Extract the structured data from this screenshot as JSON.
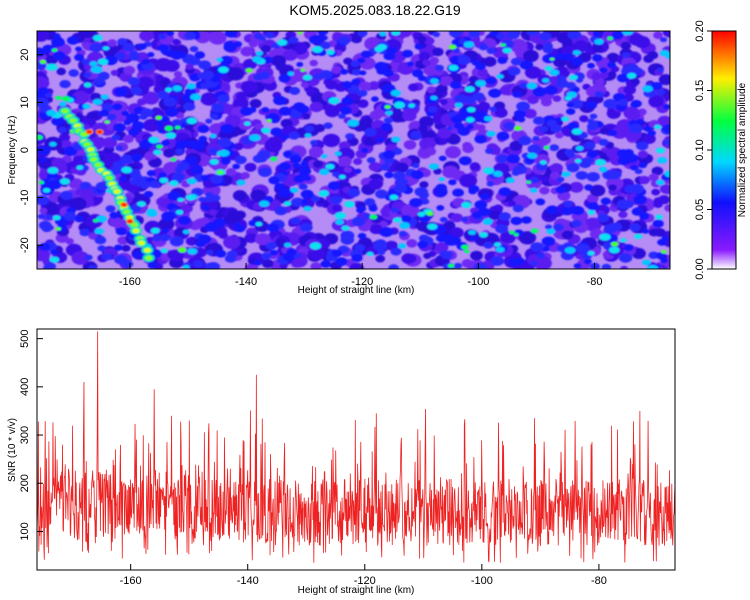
{
  "title": "KOM5.2025.083.18.22.G19",
  "chart_data": [
    {
      "type": "heatmap",
      "title": "KOM5.2025.083.18.22.G19",
      "xlabel": "Height of straight line (km)",
      "ylabel": "Frequency (Hz)",
      "xlim": [
        -176,
        -67
      ],
      "ylim": [
        -25,
        25
      ],
      "xticks": [
        "-160",
        "-140",
        "-120",
        "-100",
        "-80"
      ],
      "yticks": [
        "20",
        "10",
        "0",
        "-10",
        "-20"
      ],
      "colorbar": {
        "label": "Normalized spectral amplitude",
        "range": [
          0,
          0.2
        ],
        "ticks": [
          "0.00",
          "0.05",
          "0.10",
          "0.15",
          "0.20"
        ],
        "colors": [
          "#ffffff",
          "#7a00ff",
          "#0000ff",
          "#00e5ff",
          "#00ff00",
          "#ffff00",
          "#ff0000"
        ]
      },
      "ridge": {
        "description": "bright diagonal trace",
        "points": [
          [
            -171,
            8
          ],
          [
            -168,
            3
          ],
          [
            -166,
            -2
          ],
          [
            -163,
            -7
          ],
          [
            -161,
            -12
          ],
          [
            -159,
            -17
          ],
          [
            -156,
            -24
          ]
        ]
      }
    },
    {
      "type": "line",
      "xlabel": "Height of straight line (km)",
      "ylabel": "SNR (10 * v/v)",
      "xlim": [
        -176,
        -67
      ],
      "ylim": [
        20,
        520
      ],
      "xticks": [
        "-160",
        "-140",
        "-120",
        "-100",
        "-80"
      ],
      "yticks": [
        "500",
        "400",
        "300",
        "200",
        "100"
      ],
      "color": "#ee2222",
      "baseline": 140,
      "noise_amplitude": 70,
      "peaks": [
        {
          "x": -165.6,
          "y": 515
        },
        {
          "x": -168.0,
          "y": 410
        },
        {
          "x": -156.0,
          "y": 395
        },
        {
          "x": -138.5,
          "y": 425
        },
        {
          "x": -153.0,
          "y": 340
        },
        {
          "x": -150.0,
          "y": 330
        },
        {
          "x": -118.0,
          "y": 345
        },
        {
          "x": -73.0,
          "y": 350
        },
        {
          "x": -91.0,
          "y": 335
        },
        {
          "x": -103.0,
          "y": 320
        }
      ]
    }
  ]
}
